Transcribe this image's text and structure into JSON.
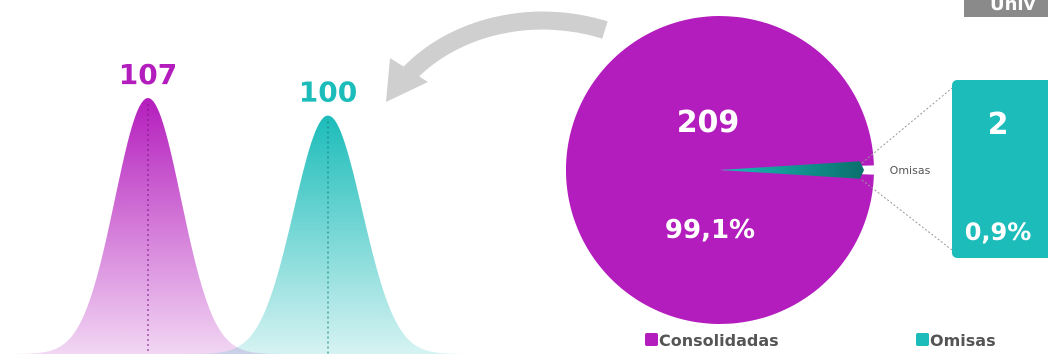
{
  "header": {
    "partial_text": "Univ"
  },
  "colors": {
    "consolidadas": "#b41dbd",
    "omisas": "#1bbcb9",
    "arrow": "#cfcfcf",
    "label_text": "#555555"
  },
  "chart_data": [
    {
      "type": "area",
      "description_type": "bell-peaks",
      "categories": [
        "Consolidadas",
        "Omisas"
      ],
      "values": [
        107,
        100
      ],
      "value_labels": [
        "107",
        "100"
      ],
      "colors": [
        "#b41dbd",
        "#1bbcb9"
      ]
    },
    {
      "type": "pie",
      "slices": [
        {
          "label": "Consolidadas",
          "value": 209,
          "value_label": "209",
          "percent_label": "99,1%",
          "color": "#b41dbd"
        },
        {
          "label": "Omisas",
          "value": 2,
          "value_label": "2",
          "percent_label": "0,9%",
          "color": "#1bbcb9"
        }
      ],
      "callout_label": "Omisas",
      "legend": [
        {
          "label": "Consolidadas",
          "color": "#b41dbd"
        },
        {
          "label": "Omisas",
          "color": "#1bbcb9"
        }
      ],
      "legend_position": "bottom"
    }
  ]
}
